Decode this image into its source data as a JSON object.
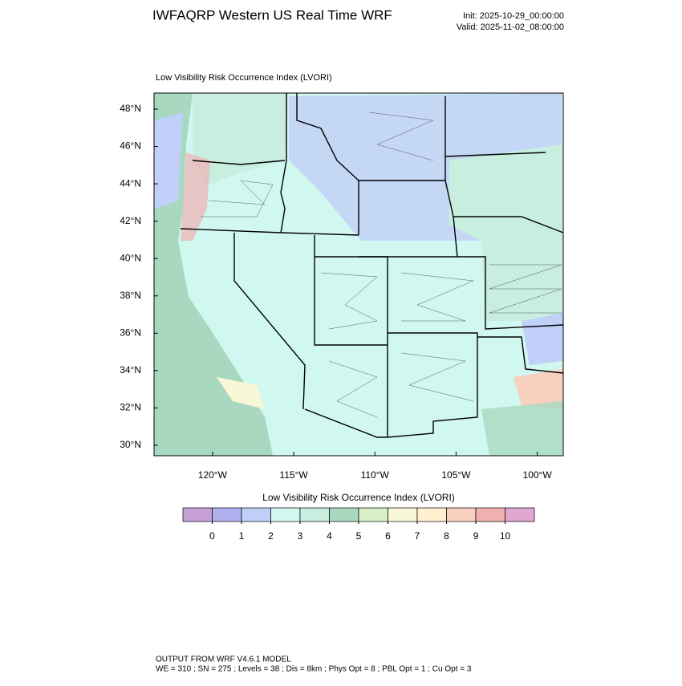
{
  "header": {
    "title": "IWFAQRP Western US Real Time WRF",
    "init": "Init: 2025-10-29_00:00:00",
    "valid": "Valid: 2025-11-02_08:00:00"
  },
  "map": {
    "subtitle": "Low Visibility Risk Occurrence Index   (LVORI)",
    "xlim": [
      -123.6,
      -98.4
    ],
    "ylim": [
      29.44,
      48.86
    ],
    "xticks": [
      {
        "value": -120,
        "label": "120°W"
      },
      {
        "value": -115,
        "label": "115°W"
      },
      {
        "value": -110,
        "label": "110°W"
      },
      {
        "value": -105,
        "label": "105°W"
      },
      {
        "value": -100,
        "label": "100°W"
      }
    ],
    "yticks": [
      {
        "value": 30,
        "label": "30°N"
      },
      {
        "value": 32,
        "label": "32°N"
      },
      {
        "value": 34,
        "label": "34°N"
      },
      {
        "value": 36,
        "label": "36°N"
      },
      {
        "value": 38,
        "label": "38°N"
      },
      {
        "value": 40,
        "label": "40°N"
      },
      {
        "value": 42,
        "label": "42°N"
      },
      {
        "value": 44,
        "label": "44°N"
      },
      {
        "value": 46,
        "label": "46°N"
      },
      {
        "value": 48,
        "label": "48°N"
      }
    ]
  },
  "colorbar": {
    "title": "Low Visibility Risk Occurrence Index  (LVORI)",
    "levels": [
      0,
      1,
      2,
      3,
      4,
      5,
      6,
      7,
      8,
      9,
      10
    ],
    "colors": [
      "#c8a0d8",
      "#b0b0ee",
      "#c0d0f8",
      "#d0f8f0",
      "#c8eee0",
      "#a8d8c0",
      "#d8f0c8",
      "#f8f8d8",
      "#fff0d0",
      "#f8d0c0",
      "#f0b0b0",
      "#e0a8d0"
    ]
  },
  "footer": {
    "line1": "OUTPUT FROM WRF V4.6.1 MODEL",
    "line2": "WE = 310 ; SN = 275 ; Levels = 38 ; Dis = 8km ; Phys Opt = 8 ; PBL Opt = 1 ; Cu Opt = 3"
  }
}
